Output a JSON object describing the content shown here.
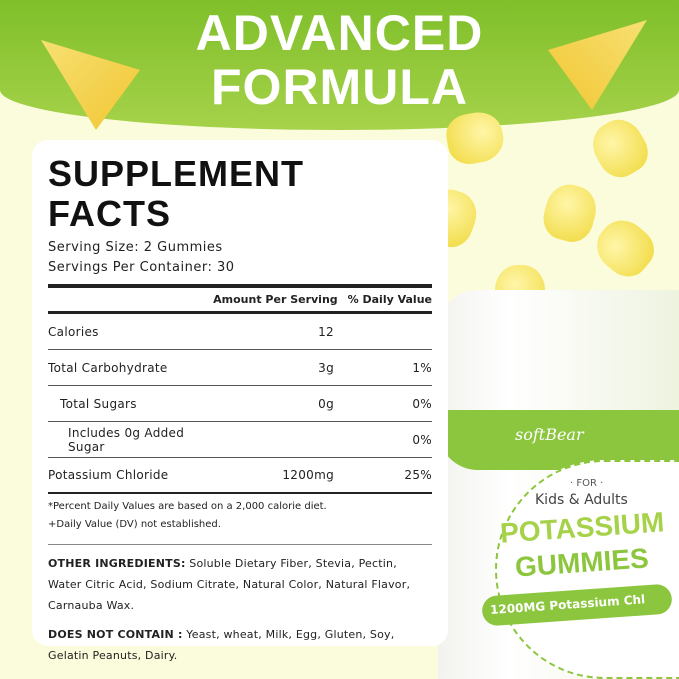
{
  "banner": {
    "line1": "ADVANCED",
    "line2": "FORMULA"
  },
  "facts": {
    "title": "SUPPLEMENT FACTS",
    "serving_size": "Serving Size: 2 Gummies",
    "servings_per_container": "Servings Per Container: 30",
    "col_amount": "Amount Per Serving",
    "col_dv": "% Daily Value",
    "rows": [
      {
        "name": "Calories",
        "amount": "12",
        "dv": ""
      },
      {
        "name": "Total Carbohydrate",
        "amount": "3g",
        "dv": "1%"
      },
      {
        "name": "Total Sugars",
        "amount": "0g",
        "dv": "0%"
      },
      {
        "name": "Includes 0g Added Sugar",
        "amount": "",
        "dv": "0%"
      },
      {
        "name": "Potassium Chloride",
        "amount": "1200mg",
        "dv": "25%"
      }
    ],
    "note1": "*Percent Daily Values are based on a 2,000 calorie diet.",
    "note2": "+Daily Value (DV) not established.",
    "other_label": "OTHER INGREDIENTS:",
    "other_text": "Soluble Dietary Fiber, Stevia, Pectin, Water Citric Acid, Sodium Citrate, Natural Color, Natural Flavor, Carnauba Wax.",
    "not_label": "DOES NOT CONTAIN :",
    "not_text": "Yeast, wheat, Milk, Egg, Gluten, Soy, Gelatin Peanuts, Dairy."
  },
  "product": {
    "brand": "softBear",
    "for": "· FOR ·",
    "audience": "Kids & Adults",
    "name1": "POTASSIUM",
    "name2": "GUMMIES",
    "dose": "1200MG Potassium Chl"
  }
}
